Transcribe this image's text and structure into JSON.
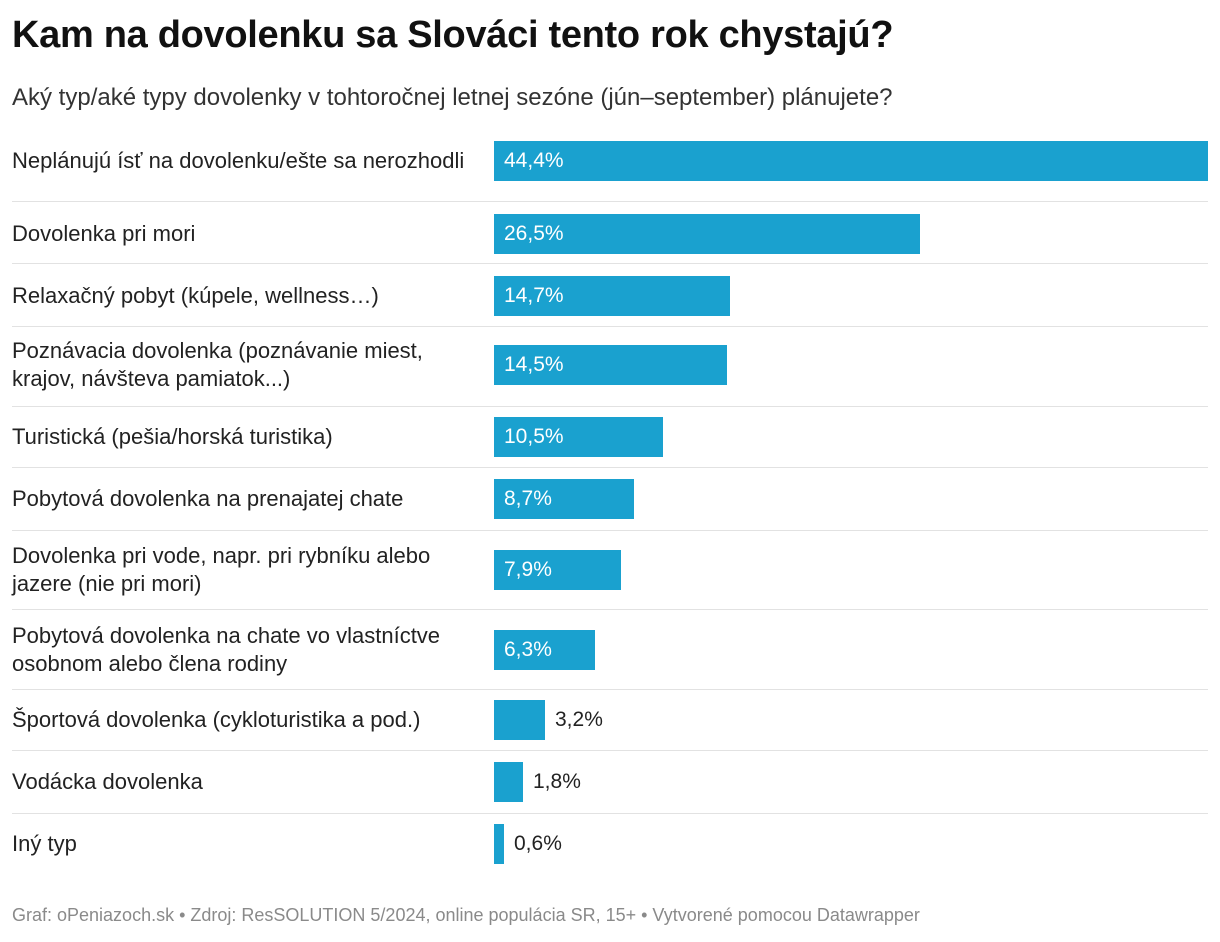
{
  "chart_data": {
    "type": "bar",
    "orientation": "horizontal",
    "title": "Kam na dovolenku sa Slováci tento rok chystajú?",
    "subtitle": "Aký typ/aké typy dovolenky v tohtoročnej letnej sezóne (jún–september) plánujete?",
    "categories": [
      "Neplánujú ísť na dovolenku/ešte sa nerozhodli",
      "Dovolenka pri mori",
      "Relaxačný pobyt (kúpele, wellness…)",
      "Poznávacia dovolenka (poznávanie miest, krajov, návšteva pamiatok...)",
      "Turistická (pešia/horská turistika)",
      "Pobytová dovolenka na prenajatej chate",
      "Dovolenka pri vode, napr. pri rybníku alebo jazere (nie pri mori)",
      "Pobytová dovolenka na chate vo vlastníctve osobnom alebo člena rodiny",
      "Športová dovolenka (cykloturistika a pod.)",
      "Vodácka dovolenka",
      "Iný typ"
    ],
    "values": [
      44.4,
      26.5,
      14.7,
      14.5,
      10.5,
      8.7,
      7.9,
      6.3,
      3.2,
      1.8,
      0.6
    ],
    "value_labels": [
      "44,4%",
      "26,5%",
      "14,7%",
      "14,5%",
      "10,5%",
      "8,7%",
      "7,9%",
      "6,3%",
      "3,2%",
      "1,8%",
      "0,6%"
    ],
    "unit": "%",
    "xlim": [
      0,
      44.4
    ],
    "bar_color": "#1aa1cf",
    "grid": false,
    "legend": "none"
  },
  "footer": {
    "text": "Graf: oPeniazoch.sk • Zdroj: ResSOLUTION 5/2024, online populácia SR, 15+ • Vytvorené pomocou Datawrapper"
  }
}
